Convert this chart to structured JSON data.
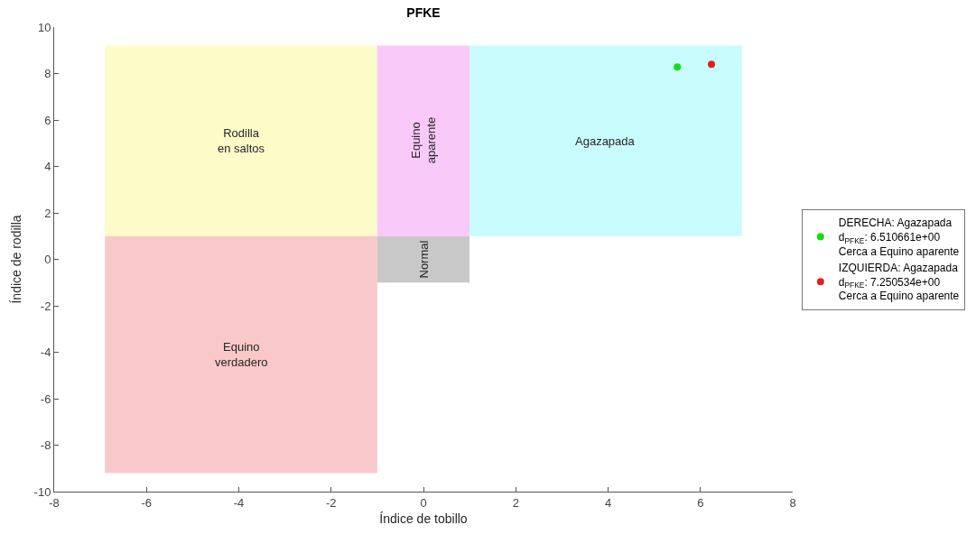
{
  "chart_data": {
    "type": "scatter",
    "title": "PFKE",
    "xlabel": "Índice de tobillo",
    "ylabel": "Índice de rodilla",
    "xlim": [
      -8,
      8
    ],
    "xticks": [
      -8,
      -6,
      -4,
      -2,
      0,
      2,
      4,
      6,
      8
    ],
    "ylim": [
      -10,
      10
    ],
    "yticks": [
      -10,
      -8,
      -6,
      -4,
      -2,
      0,
      2,
      4,
      6,
      8,
      10
    ],
    "series": [
      {
        "type": "line",
        "color": "#fdfbc8",
        "x": [
          -6.9,
          -1
        ],
        "values": [
          null,
          null
        ],
        "lower": [
          1,
          1
        ],
        "upper": [
          9.2,
          9.2
        ]
      },
      {
        "type": "line",
        "color": "#f9c9f9",
        "x": [
          -1,
          1
        ],
        "values": [
          null,
          null
        ],
        "lower": [
          1,
          1
        ],
        "upper": [
          9.2,
          9.2
        ]
      },
      {
        "type": "line",
        "color": "#c9fcfc",
        "x": [
          1,
          6.9
        ],
        "values": [
          null,
          null
        ],
        "lower": [
          1,
          1
        ],
        "upper": [
          9.2,
          9.2
        ]
      },
      {
        "type": "line",
        "color": "#c8c8c8",
        "x": [
          -1,
          1
        ],
        "values": [
          null,
          null
        ],
        "lower": [
          -1,
          -1
        ],
        "upper": [
          1,
          1
        ]
      },
      {
        "type": "line",
        "color": "#f9c9c9",
        "x": [
          -6.9,
          -1
        ],
        "values": [
          null,
          null
        ],
        "lower": [
          -9.2,
          -9.2
        ],
        "upper": [
          1,
          1
        ]
      },
      {
        "name": "DERECHA: Agazapada\nd$_{PFKE}$: 6.510661e+00\nCerca a Equino aparente",
        "color": "#10e010",
        "marker": "circle",
        "x": [
          5.5
        ],
        "values": [
          8.28
        ]
      },
      {
        "name": "IZQUIERDA: Agazapada\nd$_{PFKE}$: 7.250534e+00\nCerca a Equino aparente",
        "color": "#e02020",
        "marker": "circle",
        "x": [
          6.24
        ],
        "values": [
          8.4
        ]
      }
    ],
    "annotations": [
      "Rodilla\nen saltos",
      "Equino\naparente",
      "Agazapada",
      "Normal",
      "Equino\nverdadero"
    ],
    "legend": "right"
  }
}
